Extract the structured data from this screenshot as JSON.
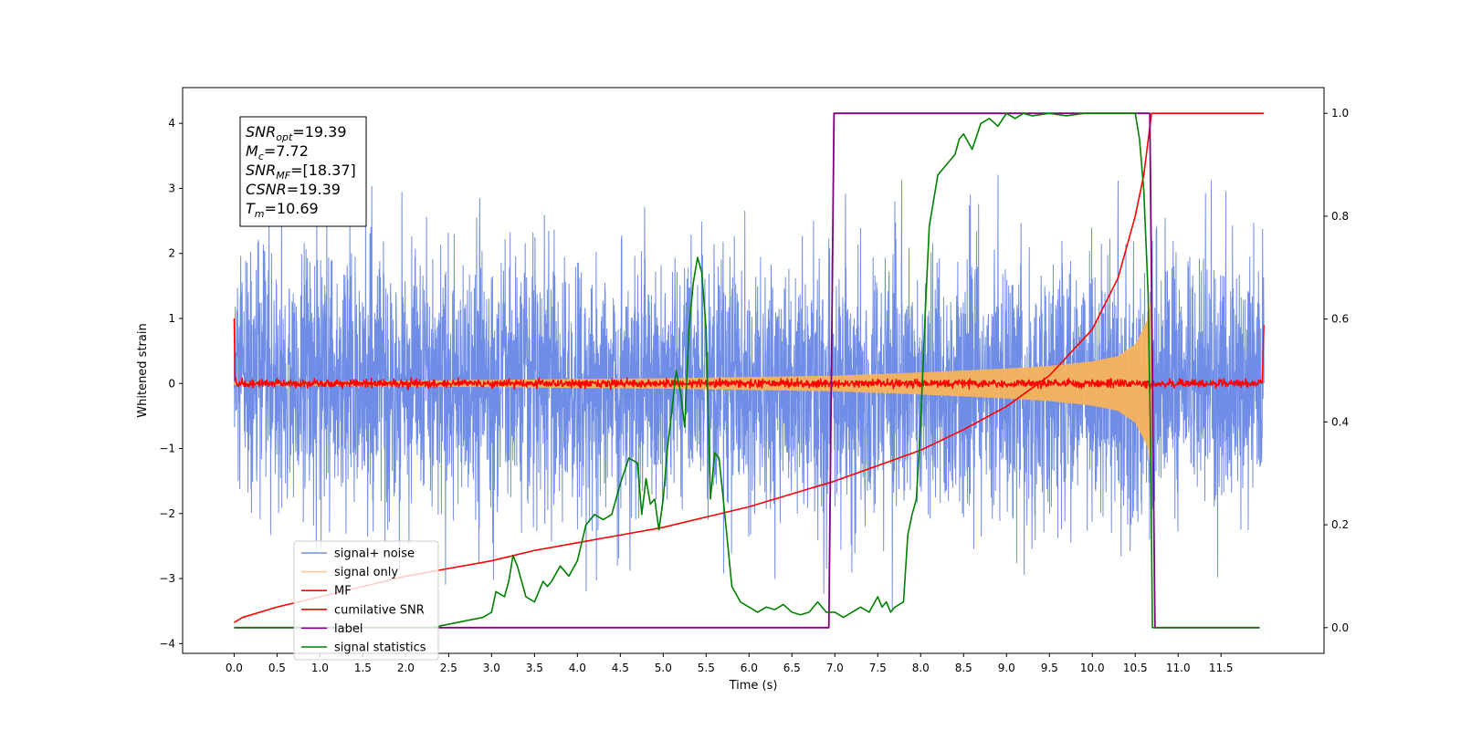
{
  "chart_data": {
    "type": "line",
    "xlabel": "Time (s)",
    "ylabel": "Whitened strain",
    "x_range": [
      -0.6,
      12.7
    ],
    "y_range": [
      -4.15,
      4.55
    ],
    "y2_range": [
      -0.05,
      1.05
    ],
    "x_ticks": [
      "0.0",
      "0.5",
      "1.0",
      "1.5",
      "2.0",
      "2.5",
      "3.0",
      "3.5",
      "4.0",
      "4.5",
      "5.0",
      "5.5",
      "6.0",
      "6.5",
      "7.0",
      "7.5",
      "8.0",
      "8.5",
      "9.0",
      "9.5",
      "10.0",
      "10.5",
      "11.0",
      "11.5"
    ],
    "y_ticks": [
      "−4",
      "−3",
      "−2",
      "−1",
      "0",
      "1",
      "2",
      "3",
      "4"
    ],
    "y2_ticks": [
      "0.0",
      "0.2",
      "0.4",
      "0.6",
      "0.8",
      "1.0"
    ],
    "legend_position": "lower-left",
    "legend": [
      "signal+ noise",
      "signal only",
      "MF",
      "cumilative SNR",
      "label",
      "signal statistics"
    ],
    "annotation": {
      "lines": [
        {
          "base": "SNR",
          "sub": "opt",
          "value": "=19.39"
        },
        {
          "base": "M",
          "sub": "c",
          "value": "=7.72"
        },
        {
          "base": "SNR",
          "sub": "MF",
          "value": "=[18.37]"
        },
        {
          "base": "CSNR",
          "sub": "",
          "value": "=19.39"
        },
        {
          "base": "T",
          "sub": "m",
          "value": "=10.69"
        }
      ]
    },
    "series": [
      {
        "name": "signal+ noise",
        "color": "#6f8de6",
        "axis": "left",
        "kind": "noise",
        "x_start": 0.0,
        "x_end": 12.0,
        "envelope_upper": 3.3,
        "envelope_lower": -3.7,
        "std": 1.0
      },
      {
        "name": "signal only",
        "color": "#f5b35b",
        "axis": "left",
        "kind": "chirp",
        "x_start": 0.0,
        "x_end": 10.69,
        "amplitude_points": [
          [
            0.0,
            0.02
          ],
          [
            5.0,
            0.08
          ],
          [
            7.0,
            0.12
          ],
          [
            8.0,
            0.17
          ],
          [
            9.0,
            0.23
          ],
          [
            9.5,
            0.27
          ],
          [
            10.0,
            0.34
          ],
          [
            10.3,
            0.42
          ],
          [
            10.5,
            0.6
          ],
          [
            10.6,
            0.85
          ],
          [
            10.65,
            1.0
          ],
          [
            10.69,
            1.35
          ]
        ]
      },
      {
        "name": "MF",
        "color": "#ff0000",
        "axis": "left",
        "kind": "mf",
        "x_start": 0.0,
        "x_end": 12.0,
        "start_value": 1.0,
        "end_value": 0.9,
        "baseline": 0.0
      },
      {
        "name": "cumilative SNR",
        "color": "#ff0000",
        "axis": "right",
        "x": [
          0.0,
          0.1,
          0.5,
          1.0,
          1.5,
          2.0,
          2.5,
          3.0,
          3.5,
          4.0,
          4.5,
          5.0,
          5.5,
          6.0,
          6.5,
          7.0,
          7.5,
          8.0,
          8.5,
          9.0,
          9.5,
          10.0,
          10.3,
          10.5,
          10.6,
          10.69,
          12.0
        ],
        "y": [
          0.01,
          0.02,
          0.04,
          0.06,
          0.08,
          0.1,
          0.115,
          0.13,
          0.15,
          0.165,
          0.18,
          0.195,
          0.215,
          0.235,
          0.26,
          0.285,
          0.315,
          0.345,
          0.385,
          0.43,
          0.49,
          0.58,
          0.68,
          0.8,
          0.88,
          1.0,
          1.0
        ]
      },
      {
        "name": "label",
        "color": "#800080",
        "axis": "right",
        "x": [
          0.0,
          6.93,
          6.99,
          10.67,
          10.73,
          11.95
        ],
        "y": [
          0.0,
          0.0,
          1.0,
          1.0,
          0.0,
          0.0
        ]
      },
      {
        "name": "signal statistics",
        "color": "#008000",
        "axis": "right",
        "x": [
          0.0,
          1.0,
          2.0,
          2.3,
          2.6,
          2.9,
          3.0,
          3.05,
          3.15,
          3.2,
          3.25,
          3.3,
          3.4,
          3.5,
          3.6,
          3.65,
          3.7,
          3.8,
          3.85,
          3.9,
          4.0,
          4.1,
          4.2,
          4.3,
          4.4,
          4.5,
          4.6,
          4.7,
          4.75,
          4.8,
          4.85,
          4.9,
          4.95,
          5.0,
          5.05,
          5.1,
          5.15,
          5.2,
          5.25,
          5.3,
          5.35,
          5.4,
          5.45,
          5.5,
          5.55,
          5.6,
          5.65,
          5.7,
          5.8,
          5.9,
          6.0,
          6.1,
          6.2,
          6.3,
          6.4,
          6.5,
          6.6,
          6.7,
          6.8,
          6.85,
          6.9,
          7.0,
          7.1,
          7.2,
          7.3,
          7.4,
          7.5,
          7.55,
          7.6,
          7.65,
          7.7,
          7.8,
          7.85,
          7.9,
          7.95,
          8.0,
          8.05,
          8.1,
          8.2,
          8.3,
          8.4,
          8.45,
          8.5,
          8.6,
          8.7,
          8.8,
          8.9,
          9.0,
          9.1,
          9.2,
          9.3,
          9.5,
          9.7,
          9.9,
          10.2,
          10.5,
          10.55,
          10.6,
          10.65,
          10.68,
          10.7,
          10.72,
          10.75,
          11.0,
          11.95
        ],
        "y": [
          0.0,
          0.0,
          0.0,
          0.0,
          0.01,
          0.02,
          0.03,
          0.07,
          0.06,
          0.09,
          0.14,
          0.12,
          0.06,
          0.05,
          0.09,
          0.08,
          0.09,
          0.12,
          0.11,
          0.1,
          0.13,
          0.2,
          0.22,
          0.21,
          0.22,
          0.28,
          0.33,
          0.32,
          0.22,
          0.29,
          0.24,
          0.25,
          0.19,
          0.25,
          0.35,
          0.42,
          0.5,
          0.46,
          0.39,
          0.58,
          0.67,
          0.72,
          0.69,
          0.58,
          0.25,
          0.34,
          0.33,
          0.25,
          0.08,
          0.05,
          0.04,
          0.03,
          0.04,
          0.035,
          0.045,
          0.03,
          0.025,
          0.03,
          0.05,
          0.04,
          0.03,
          0.03,
          0.02,
          0.03,
          0.04,
          0.03,
          0.06,
          0.04,
          0.05,
          0.03,
          0.04,
          0.05,
          0.18,
          0.22,
          0.25,
          0.4,
          0.6,
          0.78,
          0.88,
          0.9,
          0.92,
          0.95,
          0.96,
          0.93,
          0.98,
          0.99,
          0.975,
          1.0,
          0.99,
          1.0,
          0.995,
          1.0,
          0.995,
          1.0,
          1.0,
          1.0,
          0.95,
          0.85,
          0.65,
          0.35,
          0.0,
          0.0,
          0.0,
          0.0,
          0.0
        ]
      }
    ]
  }
}
